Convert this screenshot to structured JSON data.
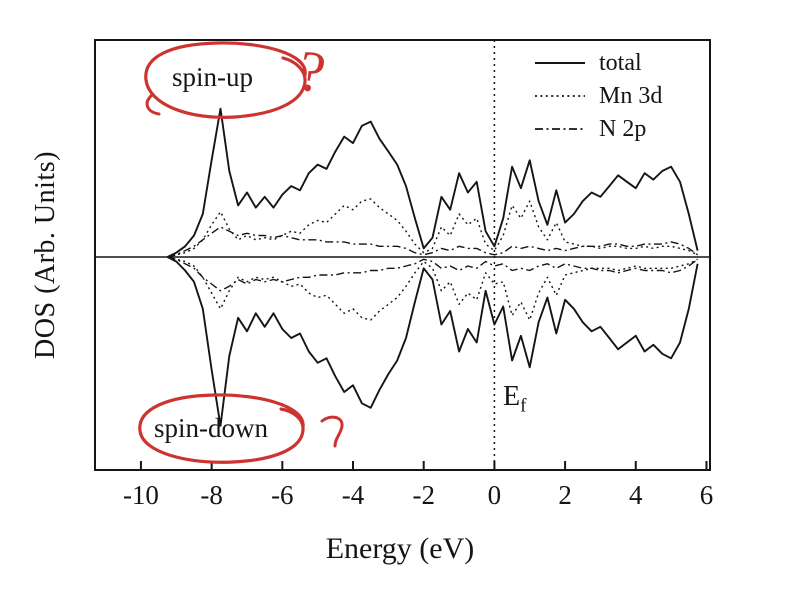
{
  "figure": {
    "fermi_label": {
      "base": "E",
      "sub": "f"
    },
    "annotations": {
      "spin_up": "spin-up",
      "spin_down": "spin-down",
      "question_mark": "?"
    },
    "annotation_color": "#cd3430",
    "curve_color": "#151515"
  },
  "chart_data": {
    "type": "line",
    "xlabel": "Energy (eV)",
    "ylabel": "DOS (Arb. Units)",
    "xlim": [
      -11.3,
      6.1
    ],
    "x_ticks": [
      -10,
      -8,
      -6,
      -4,
      -2,
      0,
      2,
      4,
      6
    ],
    "fermi_energy": 0,
    "legend": [
      "total",
      "Mn 3d",
      "N 2p"
    ],
    "legend_position": "top-right",
    "grid": false,
    "x": [
      -9.25,
      -9,
      -8.75,
      -8.5,
      -8.25,
      -8,
      -7.75,
      -7.5,
      -7.25,
      -7,
      -6.75,
      -6.5,
      -6.25,
      -6,
      -5.75,
      -5.5,
      -5.25,
      -5,
      -4.75,
      -4.5,
      -4.25,
      -4,
      -3.75,
      -3.5,
      -3.25,
      -3,
      -2.75,
      -2.5,
      -2.25,
      -2,
      -1.75,
      -1.5,
      -1.25,
      -1,
      -0.75,
      -0.5,
      -0.25,
      0,
      0.25,
      0.5,
      0.75,
      1,
      1.25,
      1.5,
      1.75,
      2,
      2.25,
      2.5,
      2.75,
      3,
      3.25,
      3.5,
      3.75,
      4,
      4.25,
      4.5,
      4.75,
      5,
      5.25,
      5.5,
      5.75
    ],
    "series": [
      {
        "name": "Mn 3d",
        "spin": "up",
        "line_style": "dotted",
        "values": [
          0,
          0.1,
          0.2,
          0.4,
          0.8,
          1.5,
          2.1,
          1.3,
          0.8,
          1,
          0.8,
          0.9,
          0.8,
          1,
          1.2,
          1.1,
          1.5,
          1.7,
          1.6,
          2,
          2.4,
          2.2,
          2.6,
          2.7,
          2.3,
          2,
          1.7,
          1.2,
          0.6,
          0.2,
          0.4,
          1.4,
          1,
          2,
          1.5,
          1.8,
          0.6,
          0.3,
          1,
          2.4,
          1.8,
          2.6,
          1.4,
          0.8,
          1.6,
          0.7,
          0.6,
          0.5,
          0.5,
          0.4,
          0.5,
          0.5,
          0.4,
          0.4,
          0.5,
          0.4,
          0.5,
          0.5,
          0.4,
          0.3,
          0.1
        ]
      },
      {
        "name": "Mn 3d",
        "spin": "down",
        "line_style": "dotted",
        "values": [
          0,
          0.1,
          0.2,
          0.4,
          0.9,
          1.6,
          2.3,
          1.5,
          0.9,
          1.1,
          0.9,
          1,
          0.9,
          1.1,
          1.3,
          1.2,
          1.6,
          1.8,
          1.7,
          2.1,
          2.5,
          2.3,
          2.7,
          2.8,
          2.4,
          2.1,
          1.8,
          1.3,
          0.7,
          0.2,
          0.5,
          1.5,
          1.1,
          2.1,
          1.6,
          1.9,
          0.7,
          1.2,
          1.1,
          2.6,
          2,
          2.8,
          1.6,
          0.9,
          1.7,
          0.8,
          0.7,
          0.6,
          0.5,
          0.5,
          0.5,
          0.6,
          0.5,
          0.4,
          0.5,
          0.5,
          0.5,
          0.5,
          0.4,
          0.3,
          0.1
        ]
      },
      {
        "name": "N 2p",
        "spin": "up",
        "line_style": "dashdot",
        "values": [
          0,
          0.1,
          0.3,
          0.5,
          0.8,
          1.1,
          1.4,
          1.2,
          1,
          1.1,
          1,
          1,
          0.9,
          1,
          0.9,
          0.8,
          0.8,
          0.8,
          0.7,
          0.7,
          0.7,
          0.6,
          0.6,
          0.6,
          0.5,
          0.5,
          0.5,
          0.4,
          0.2,
          0.1,
          0.2,
          0.4,
          0.3,
          0.5,
          0.4,
          0.4,
          0.2,
          0.1,
          0.2,
          0.5,
          0.4,
          0.5,
          0.4,
          0.3,
          0.4,
          0.3,
          0.4,
          0.5,
          0.5,
          0.5,
          0.6,
          0.6,
          0.5,
          0.5,
          0.6,
          0.6,
          0.6,
          0.7,
          0.6,
          0.4,
          0.1
        ]
      },
      {
        "name": "N 2p",
        "spin": "down",
        "line_style": "dashdot",
        "values": [
          0,
          0.1,
          0.3,
          0.5,
          0.9,
          1.2,
          1.5,
          1.3,
          1,
          1.2,
          1,
          1.1,
          1,
          1.1,
          1,
          0.9,
          0.9,
          0.8,
          0.8,
          0.8,
          0.7,
          0.7,
          0.7,
          0.6,
          0.6,
          0.5,
          0.5,
          0.4,
          0.3,
          0.1,
          0.2,
          0.5,
          0.4,
          0.6,
          0.4,
          0.5,
          0.2,
          0.4,
          0.3,
          0.6,
          0.5,
          0.6,
          0.4,
          0.3,
          0.5,
          0.3,
          0.4,
          0.5,
          0.5,
          0.6,
          0.6,
          0.7,
          0.6,
          0.5,
          0.6,
          0.6,
          0.6,
          0.7,
          0.6,
          0.4,
          0.1
        ]
      },
      {
        "name": "total",
        "spin": "up",
        "line_style": "solid",
        "values": [
          0,
          0.2,
          0.5,
          1,
          2,
          4.5,
          6.9,
          4,
          2.4,
          3,
          2.3,
          2.8,
          2.3,
          2.9,
          3.3,
          3.1,
          3.9,
          4.3,
          4.1,
          4.9,
          5.6,
          5.3,
          6.1,
          6.3,
          5.5,
          4.9,
          4.3,
          3.3,
          1.8,
          0.4,
          0.9,
          2.8,
          2.2,
          3.9,
          3,
          3.5,
          1.2,
          0.5,
          1.8,
          4.2,
          3.2,
          4.5,
          2.6,
          1.5,
          3.1,
          1.6,
          2,
          2.6,
          3,
          2.8,
          3.3,
          3.8,
          3.5,
          3.2,
          3.9,
          3.6,
          4,
          4.2,
          3.5,
          2,
          0.3
        ]
      },
      {
        "name": "total",
        "spin": "down",
        "line_style": "solid",
        "values": [
          0,
          0.2,
          0.6,
          1.1,
          2.3,
          5,
          7.5,
          4.4,
          2.7,
          3.3,
          2.5,
          3.1,
          2.5,
          3.2,
          3.6,
          3.4,
          4.2,
          4.7,
          4.5,
          5.3,
          6,
          5.7,
          6.5,
          6.7,
          5.9,
          5.2,
          4.6,
          3.6,
          2,
          0.5,
          1,
          3,
          2.4,
          4.2,
          3.2,
          3.8,
          1.5,
          3,
          2.2,
          4.6,
          3.5,
          4.9,
          2.9,
          1.8,
          3.4,
          1.9,
          2.3,
          2.9,
          3.3,
          3.1,
          3.6,
          4.1,
          3.8,
          3.5,
          4.2,
          3.9,
          4.3,
          4.5,
          3.8,
          2.3,
          0.3
        ]
      }
    ]
  }
}
